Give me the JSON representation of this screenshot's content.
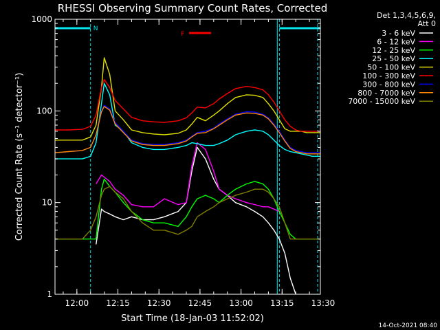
{
  "chart_data": {
    "type": "line",
    "title": "RHESSI Observing Summary Count Rates, Corrected",
    "xlabel": "Start Time (18-Jan-03 11:52:02)",
    "ylabel": "Corrected Count Rate (s⁻¹ detector⁻¹)",
    "yscale": "log",
    "ylim": [
      1,
      1000
    ],
    "xlim_minutes": [
      0,
      97
    ],
    "x_tick_labels": [
      "12:00",
      "12:15",
      "12:30",
      "12:45",
      "13:00",
      "13:15",
      "13:30"
    ],
    "x_tick_minutes": [
      8,
      23,
      38,
      53,
      68,
      83,
      98
    ],
    "y_tick_labels": [
      "1",
      "10",
      "100",
      "1000"
    ],
    "y_tick_values": [
      1,
      10,
      100,
      1000
    ],
    "detectors_line1": "Det 1,3,4,5,6,9,",
    "detectors_line2": "Att 0",
    "annotations": {
      "night_start": "N",
      "flare": "F"
    },
    "timestamp": "14-Oct-2021 08:40",
    "x_minutes": [
      0,
      5,
      10,
      13,
      15,
      17,
      18,
      20,
      22,
      25,
      28,
      32,
      36,
      40,
      45,
      48,
      50,
      52,
      55,
      58,
      60,
      63,
      66,
      70,
      73,
      76,
      78,
      80,
      82,
      84,
      86,
      88,
      90,
      92,
      94,
      97
    ],
    "series": [
      {
        "name": "3 - 6 keV",
        "color": "#ffffff",
        "values": [
          null,
          null,
          null,
          null,
          3.5,
          8.5,
          8.0,
          7.5,
          7.0,
          6.5,
          7.0,
          6.5,
          6.5,
          7.0,
          8.0,
          10,
          22,
          40,
          30,
          18,
          14,
          12,
          10,
          9,
          8,
          7,
          6,
          5,
          4,
          2.8,
          1.5,
          1.0,
          null,
          null,
          null,
          null
        ]
      },
      {
        "name": "6 - 12 keV",
        "color": "#ff00ff",
        "values": [
          null,
          null,
          null,
          null,
          16,
          20,
          19,
          17,
          14,
          12,
          9.5,
          9,
          9,
          11,
          9.5,
          10,
          25,
          45,
          38,
          22,
          14,
          12,
          11,
          10,
          9.5,
          9,
          9,
          8.5,
          8,
          null,
          null,
          null,
          null,
          null,
          null,
          null
        ]
      },
      {
        "name": "12 - 25 keV",
        "color": "#00ff00",
        "values": [
          4,
          4,
          4,
          4,
          4,
          14,
          18,
          15,
          13,
          10,
          8,
          6.5,
          6,
          6,
          5.5,
          7,
          9,
          11,
          12,
          11,
          10,
          12,
          14,
          16,
          17,
          16,
          14,
          11,
          8,
          6,
          4.5,
          4,
          4,
          4,
          4,
          4
        ]
      },
      {
        "name": "25 - 50 keV",
        "color": "#00ffff",
        "values": [
          30,
          30,
          30,
          32,
          45,
          120,
          200,
          150,
          70,
          60,
          45,
          40,
          38,
          38,
          40,
          42,
          45,
          44,
          42,
          42,
          44,
          48,
          55,
          60,
          62,
          60,
          55,
          48,
          42,
          38,
          36,
          35,
          34,
          33,
          32,
          32
        ]
      },
      {
        "name": "50 - 100 keV",
        "color": "#e0e000",
        "values": [
          48,
          48,
          48,
          52,
          70,
          180,
          380,
          250,
          100,
          80,
          62,
          58,
          56,
          55,
          57,
          62,
          72,
          85,
          78,
          90,
          100,
          120,
          140,
          150,
          148,
          140,
          120,
          100,
          80,
          64,
          60,
          60,
          60,
          58,
          58,
          58
        ]
      },
      {
        "name": "100 - 300 keV",
        "color": "#ff0000",
        "values": [
          62,
          62,
          63,
          68,
          90,
          180,
          220,
          180,
          130,
          105,
          85,
          78,
          76,
          75,
          78,
          84,
          95,
          110,
          108,
          120,
          135,
          155,
          175,
          185,
          180,
          170,
          150,
          125,
          100,
          80,
          68,
          62,
          60,
          60,
          60,
          60
        ]
      },
      {
        "name": "300 - 800 keV",
        "color": "#0000ff",
        "values": [
          35,
          36,
          37,
          40,
          55,
          100,
          115,
          105,
          75,
          60,
          48,
          44,
          43,
          43,
          45,
          48,
          53,
          58,
          60,
          65,
          72,
          82,
          92,
          98,
          97,
          92,
          84,
          72,
          60,
          48,
          40,
          37,
          36,
          35,
          35,
          35
        ]
      },
      {
        "name": "800 - 7000 keV",
        "color": "#ff8800",
        "values": [
          35,
          36,
          37,
          40,
          55,
          98,
          112,
          102,
          72,
          58,
          47,
          43,
          42,
          42,
          44,
          47,
          52,
          57,
          58,
          64,
          70,
          80,
          90,
          95,
          94,
          90,
          82,
          70,
          58,
          47,
          39,
          36,
          35,
          34,
          34,
          34
        ]
      },
      {
        "name": "7000 - 15000 keV",
        "color": "#808000",
        "values": [
          4,
          4,
          4,
          5,
          7,
          12,
          14,
          15,
          13,
          11,
          8,
          6,
          5,
          5,
          4.5,
          5,
          5.5,
          7,
          8,
          9,
          10,
          11,
          12,
          13,
          14,
          14,
          13,
          11,
          9,
          6,
          4,
          4,
          4,
          4,
          4,
          4
        ]
      }
    ]
  },
  "timeline": {
    "night_bars_min": [
      [
        -1,
        13
      ],
      [
        82,
        97
      ]
    ],
    "night_boundaries_min": [
      13,
      82,
      96
    ],
    "flare_bar_min": [
      49,
      57
    ]
  }
}
